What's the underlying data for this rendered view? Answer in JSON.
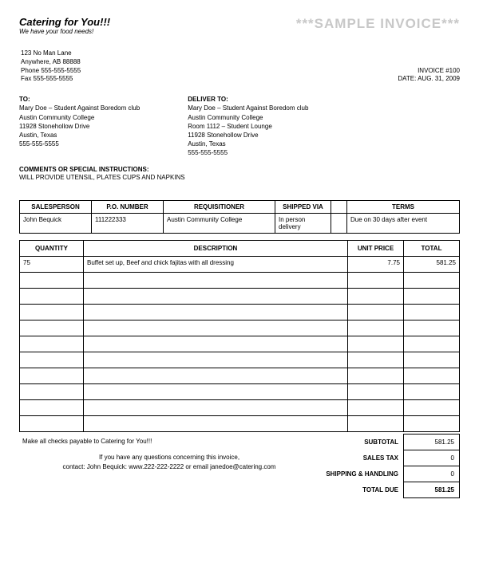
{
  "header": {
    "company_name": "Catering for You!!!",
    "tagline": "We have your food needs!",
    "watermark": "***SAMPLE INVOICE***",
    "address": {
      "line1": "123 No Man Lane",
      "line2": "Anywhere, AB 88888",
      "phone": "Phone 555-555-5555",
      "fax": "Fax 555-555-5555"
    },
    "invoice_no": "INVOICE #100",
    "invoice_date": "DATE: AUG. 31, 2009"
  },
  "billto": {
    "heading": "TO:",
    "line1": "Mary Doe – Student Against Boredom club",
    "line2": "Austin Community College",
    "line3": "11928 Stonehollow Drive",
    "line4": "Austin, Texas",
    "line5": "555-555-5555"
  },
  "deliverto": {
    "heading": "DELIVER TO:",
    "line1": "Mary Doe – Student Against Boredom club",
    "line2": "Austin Community College",
    "line3": "Room 1112 – Student Lounge",
    "line4": "11928 Stonehollow Drive",
    "line5": "Austin, Texas",
    "line6": "555-555-5555"
  },
  "comments": {
    "heading": "COMMENTS OR SPECIAL INSTRUCTIONS:",
    "text": "WILL PROVIDE UTENSIL, PLATES CUPS AND NAPKINS"
  },
  "order": {
    "headers": {
      "salesperson": "SALESPERSON",
      "po": "P.O. NUMBER",
      "requisitioner": "REQUISITIONER",
      "shipped": "SHIPPED VIA",
      "terms": "TERMS"
    },
    "row": {
      "salesperson": "John Bequick",
      "po": "111222333",
      "requisitioner": "Austin Community College",
      "shipped": "In person delivery",
      "terms": "Due on 30 days after event"
    }
  },
  "items": {
    "headers": {
      "qty": "QUANTITY",
      "desc": "DESCRIPTION",
      "unit": "UNIT PRICE",
      "total": "TOTAL"
    },
    "rows": [
      {
        "qty": "75",
        "desc": "Buffet set up, Beef and chick fajitas with all dressing",
        "unit": "7.75",
        "total": "581.25"
      }
    ],
    "empty_row_count": 10
  },
  "footer": {
    "payable": "Make all checks payable to Catering for You!!!",
    "q1": "If you have any questions concerning this invoice,",
    "q2": "contact: John Bequick: www.222-222-2222 or email janedoe@catering.com"
  },
  "totals": {
    "subtotal_label": "SUBTOTAL",
    "subtotal_value": "581.25",
    "tax_label": "SALES TAX",
    "tax_value": "0",
    "ship_label": "SHIPPING & HANDLING",
    "ship_value": "0",
    "due_label": "TOTAL DUE",
    "due_value": "581.25"
  },
  "style": {
    "watermark_color": "#c8c8c8",
    "border_color": "#000000",
    "background_color": "#ffffff",
    "body_font_size": 9,
    "small_font_size": 8
  }
}
